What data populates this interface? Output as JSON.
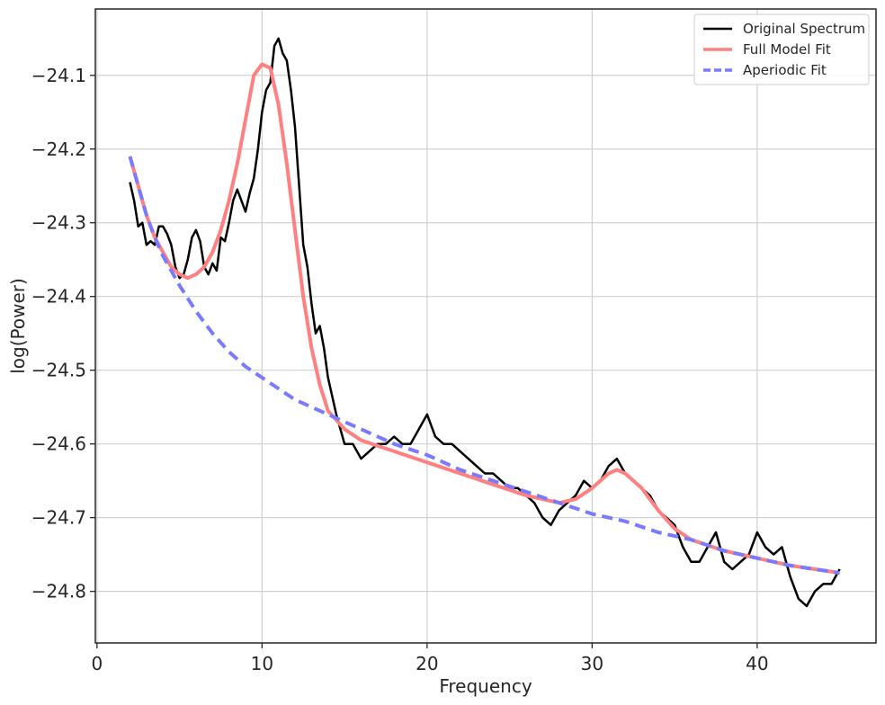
{
  "chart_data": {
    "type": "line",
    "title": "",
    "xlabel": "Frequency",
    "ylabel": "log(Power)",
    "xlim": [
      -0.1,
      47.2
    ],
    "ylim": [
      -24.87,
      -24.01
    ],
    "xticks": [
      0,
      10,
      20,
      30,
      40
    ],
    "xtick_labels": [
      "0",
      "10",
      "20",
      "30",
      "40"
    ],
    "yticks": [
      -24.1,
      -24.2,
      -24.3,
      -24.4,
      -24.5,
      -24.6,
      -24.7,
      -24.8
    ],
    "ytick_labels": [
      "−24.1",
      "−24.2",
      "−24.3",
      "−24.4",
      "−24.5",
      "−24.6",
      "−24.7",
      "−24.8"
    ],
    "grid": true,
    "legend_position": "top-right",
    "series": [
      {
        "name": "Original Spectrum",
        "color": "#000000",
        "style": "solid",
        "x": [
          2.0,
          2.25,
          2.5,
          2.75,
          3.0,
          3.25,
          3.5,
          3.75,
          4.0,
          4.25,
          4.5,
          4.75,
          5.0,
          5.25,
          5.5,
          5.75,
          6.0,
          6.25,
          6.5,
          6.75,
          7.0,
          7.25,
          7.5,
          7.75,
          8.0,
          8.25,
          8.5,
          8.75,
          9.0,
          9.25,
          9.5,
          9.75,
          10.0,
          10.25,
          10.5,
          10.75,
          11.0,
          11.25,
          11.5,
          11.75,
          12.0,
          12.25,
          12.5,
          12.75,
          13.0,
          13.25,
          13.5,
          13.75,
          14.0,
          14.5,
          15.0,
          15.5,
          16.0,
          16.5,
          17.0,
          17.5,
          18.0,
          18.5,
          19.0,
          19.5,
          20.0,
          20.5,
          21.0,
          21.5,
          22.0,
          22.5,
          23.0,
          23.5,
          24.0,
          24.5,
          25.0,
          25.5,
          26.0,
          26.5,
          27.0,
          27.5,
          28.0,
          28.5,
          29.0,
          29.5,
          30.0,
          30.5,
          31.0,
          31.5,
          32.0,
          32.5,
          33.0,
          33.5,
          34.0,
          34.5,
          35.0,
          35.5,
          36.0,
          36.5,
          37.0,
          37.5,
          38.0,
          38.5,
          39.0,
          39.5,
          40.0,
          40.5,
          41.0,
          41.5,
          42.0,
          42.5,
          43.0,
          43.5,
          44.0,
          44.5,
          45.0
        ],
        "y": [
          -24.245,
          -24.27,
          -24.305,
          -24.3,
          -24.33,
          -24.325,
          -24.33,
          -24.305,
          -24.305,
          -24.315,
          -24.33,
          -24.36,
          -24.375,
          -24.37,
          -24.35,
          -24.32,
          -24.31,
          -24.325,
          -24.36,
          -24.37,
          -24.355,
          -24.365,
          -24.32,
          -24.325,
          -24.3,
          -24.27,
          -24.255,
          -24.27,
          -24.285,
          -24.26,
          -24.24,
          -24.2,
          -24.15,
          -24.12,
          -24.11,
          -24.06,
          -24.05,
          -24.07,
          -24.08,
          -24.12,
          -24.17,
          -24.25,
          -24.33,
          -24.36,
          -24.41,
          -24.45,
          -24.44,
          -24.47,
          -24.51,
          -24.56,
          -24.6,
          -24.6,
          -24.62,
          -24.61,
          -24.6,
          -24.6,
          -24.59,
          -24.6,
          -24.6,
          -24.58,
          -24.56,
          -24.59,
          -24.6,
          -24.6,
          -24.61,
          -24.62,
          -24.63,
          -24.64,
          -24.64,
          -24.65,
          -24.66,
          -24.66,
          -24.67,
          -24.68,
          -24.7,
          -24.71,
          -24.69,
          -24.68,
          -24.67,
          -24.65,
          -24.66,
          -24.65,
          -24.63,
          -24.62,
          -24.64,
          -24.65,
          -24.66,
          -24.67,
          -24.69,
          -24.7,
          -24.71,
          -24.74,
          -24.76,
          -24.76,
          -24.74,
          -24.72,
          -24.76,
          -24.77,
          -24.76,
          -24.75,
          -24.72,
          -24.74,
          -24.75,
          -24.74,
          -24.78,
          -24.81,
          -24.82,
          -24.8,
          -24.79,
          -24.79,
          -24.77
        ]
      },
      {
        "name": "Full Model Fit",
        "color": "#ff8080",
        "style": "solid",
        "x": [
          2.0,
          2.5,
          3.0,
          3.5,
          4.0,
          4.5,
          5.0,
          5.5,
          6.0,
          6.5,
          7.0,
          7.5,
          8.0,
          8.5,
          9.0,
          9.5,
          10.0,
          10.5,
          11.0,
          11.5,
          12.0,
          12.5,
          13.0,
          13.5,
          14.0,
          15.0,
          16.0,
          18.0,
          20.0,
          22.0,
          24.0,
          26.0,
          28.0,
          29.0,
          30.0,
          31.0,
          31.5,
          32.0,
          33.0,
          34.0,
          35.0,
          36.0,
          38.0,
          40.0,
          42.0,
          45.0
        ],
        "y": [
          -24.21,
          -24.25,
          -24.29,
          -24.32,
          -24.34,
          -24.36,
          -24.37,
          -24.375,
          -24.37,
          -24.36,
          -24.34,
          -24.31,
          -24.27,
          -24.22,
          -24.16,
          -24.1,
          -24.085,
          -24.09,
          -24.14,
          -24.22,
          -24.31,
          -24.4,
          -24.47,
          -24.52,
          -24.555,
          -24.58,
          -24.595,
          -24.61,
          -24.625,
          -24.64,
          -24.655,
          -24.67,
          -24.68,
          -24.675,
          -24.66,
          -24.64,
          -24.635,
          -24.64,
          -24.66,
          -24.69,
          -24.715,
          -24.73,
          -24.745,
          -24.755,
          -24.765,
          -24.775
        ]
      },
      {
        "name": "Aperiodic Fit",
        "color": "#7a7aff",
        "style": "dashed",
        "x": [
          2.0,
          2.5,
          3.0,
          3.5,
          4.0,
          5.0,
          6.0,
          7.0,
          8.0,
          9.0,
          10.0,
          11.0,
          12.0,
          13.0,
          14.0,
          15.0,
          16.0,
          18.0,
          20.0,
          22.0,
          24.0,
          26.0,
          28.0,
          30.0,
          32.0,
          34.0,
          36.0,
          38.0,
          40.0,
          42.0,
          45.0
        ],
        "y": [
          -24.21,
          -24.25,
          -24.29,
          -24.32,
          -24.345,
          -24.385,
          -24.42,
          -24.45,
          -24.475,
          -24.495,
          -24.51,
          -24.525,
          -24.54,
          -24.55,
          -24.56,
          -24.57,
          -24.58,
          -24.6,
          -24.615,
          -24.635,
          -24.65,
          -24.665,
          -24.68,
          -24.695,
          -24.705,
          -24.72,
          -24.73,
          -24.745,
          -24.755,
          -24.765,
          -24.775
        ]
      }
    ]
  }
}
